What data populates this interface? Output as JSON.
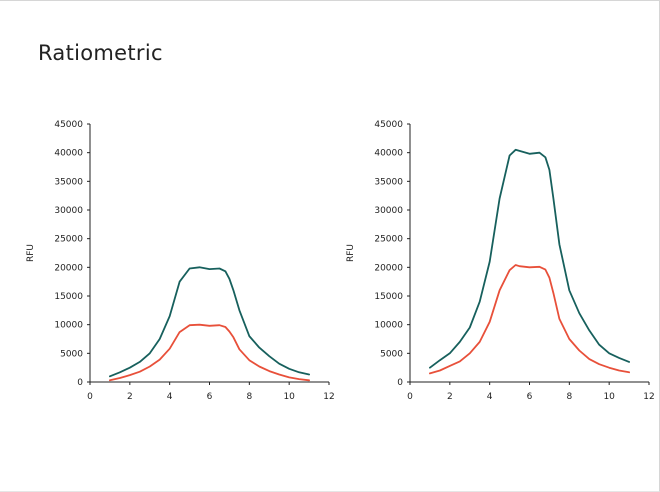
{
  "slide": {
    "title": "Ratiometric"
  },
  "chart_data": [
    {
      "type": "line",
      "ylabel": "RFU",
      "xlim": [
        0,
        12
      ],
      "ylim": [
        0,
        45000
      ],
      "xticks": [
        0,
        2,
        4,
        6,
        8,
        10,
        12
      ],
      "yticks": [
        0,
        5000,
        10000,
        15000,
        20000,
        25000,
        30000,
        35000,
        40000,
        45000
      ],
      "series": [
        {
          "color": "#17605d",
          "x": [
            1,
            1.5,
            2,
            2.5,
            3,
            3.5,
            4,
            4.5,
            5,
            5.5,
            6,
            6.5,
            6.8,
            7,
            7.2,
            7.5,
            8,
            8.5,
            9,
            9.5,
            10,
            10.5,
            11
          ],
          "y": [
            1000,
            1700,
            2500,
            3500,
            5000,
            7500,
            11500,
            17500,
            19800,
            20000,
            19700,
            19800,
            19300,
            18000,
            16000,
            12500,
            8000,
            6000,
            4500,
            3200,
            2300,
            1700,
            1300
          ]
        },
        {
          "color": "#e8503a",
          "x": [
            1,
            1.5,
            2,
            2.5,
            3,
            3.5,
            4,
            4.5,
            5,
            5.5,
            6,
            6.5,
            6.8,
            7,
            7.2,
            7.5,
            8,
            8.5,
            9,
            9.5,
            10,
            10.5,
            11
          ],
          "y": [
            300,
            700,
            1200,
            1800,
            2700,
            3900,
            5800,
            8700,
            9900,
            10000,
            9800,
            9900,
            9600,
            8800,
            7800,
            5700,
            3800,
            2700,
            1900,
            1300,
            800,
            500,
            300
          ]
        }
      ]
    },
    {
      "type": "line",
      "ylabel": "RFU",
      "xlim": [
        0,
        12
      ],
      "ylim": [
        0,
        45000
      ],
      "xticks": [
        0,
        2,
        4,
        6,
        8,
        10,
        12
      ],
      "yticks": [
        0,
        5000,
        10000,
        15000,
        20000,
        25000,
        30000,
        35000,
        40000,
        45000
      ],
      "series": [
        {
          "color": "#17605d",
          "x": [
            1,
            1.5,
            2,
            2.5,
            3,
            3.5,
            4,
            4.5,
            5,
            5.3,
            5.5,
            6,
            6.5,
            6.8,
            7,
            7.2,
            7.5,
            8,
            8.5,
            9,
            9.5,
            10,
            10.5,
            11
          ],
          "y": [
            2500,
            3800,
            5000,
            7000,
            9500,
            14000,
            21000,
            32000,
            39500,
            40500,
            40300,
            39800,
            40000,
            39200,
            37000,
            32000,
            24000,
            16000,
            12000,
            9000,
            6500,
            5000,
            4200,
            3500
          ]
        },
        {
          "color": "#e8503a",
          "x": [
            1,
            1.5,
            2,
            2.5,
            3,
            3.5,
            4,
            4.5,
            5,
            5.3,
            5.5,
            6,
            6.5,
            6.8,
            7,
            7.2,
            7.5,
            8,
            8.5,
            9,
            9.5,
            10,
            10.5,
            11
          ],
          "y": [
            1500,
            2000,
            2800,
            3600,
            5000,
            7000,
            10500,
            16000,
            19500,
            20400,
            20200,
            20000,
            20100,
            19600,
            18200,
            15500,
            11000,
            7500,
            5500,
            4000,
            3100,
            2500,
            2000,
            1700
          ]
        }
      ]
    }
  ]
}
